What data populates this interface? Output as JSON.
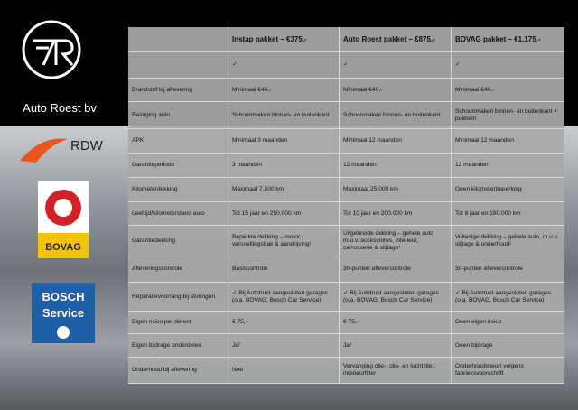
{
  "header": {
    "brand": "Auto Roest bv"
  },
  "logos": {
    "rdw": "RDW",
    "bovag": "BOVAG",
    "bosch": "BOSCH",
    "service": "Service"
  },
  "table": {
    "columns": [
      "Instap pakket – €375,-",
      "Auto Roest pakket – €875,-",
      "BOVAG pakket – €1.175,-"
    ],
    "check_row": [
      "✓",
      "✓",
      "✓"
    ],
    "rows": [
      {
        "label": "Brandstof bij aflevering",
        "cells": [
          "Minimaal €40,-",
          "Minimaal €40,-",
          "Minimaal €40,-"
        ]
      },
      {
        "label": "Reiniging auto",
        "cells": [
          "Schoonmaken binnen- en buitenkant",
          "Schoonmaken binnen- en buitenkant",
          "Schoonmaken binnen- en buitenkant + poetsen"
        ]
      },
      {
        "label": "APK",
        "cells": [
          "Minimaal 3 maanden",
          "Minimaal 12 maanden",
          "Minimaal 12 maanden"
        ]
      },
      {
        "label": "Garantieperiode",
        "cells": [
          "3 maanden",
          "12 maanden",
          "12 maanden"
        ]
      },
      {
        "label": "Kilometerdekking",
        "cells": [
          "Maximaal 7.500 km",
          "Maximaal 25.000 km",
          "Geen kilometerbeperking"
        ]
      },
      {
        "label": "Leeftijd/kilometerstand auto",
        "cells": [
          "Tot 15 jaar en 250.000 km",
          "Tot 10 jaar en 200.000 km",
          "Tot 8 jaar en 180.000 km"
        ]
      },
      {
        "label": "Garantiedekking",
        "cells": [
          "Beperkte dekking – motor, versnellingsbak & aandrijving¹",
          "Uitgebreide dekking – gehele auto m.u.v. accessoires, interieur, carrosserie & slijtage¹",
          "Volledige dekking – gehele auto, m.u.v. slijtage & onderhoud¹"
        ]
      },
      {
        "label": "Afleveringscontrole",
        "cells": [
          "Basiscontrole",
          "30-punten aflevercontrole",
          "30-punten aflevercontrole"
        ]
      },
      {
        "label": "Reparatievoorrang bij storingen",
        "cells": [
          "✓ Bij Autotrust aangesloten garages (o.a. BOVAG, Bosch Car Service)",
          "✓ Bij Autotrust aangesloten garages (o.a. BOVAG, Bosch Car Service)",
          "✓ Bij Autotrust aangesloten garages (o.a. BOVAG, Bosch Car Service)"
        ]
      },
      {
        "label": "Eigen risico per defect",
        "cells": [
          "€ 75,-",
          "€ 75,-",
          "Geen eigen risico"
        ]
      },
      {
        "label": "Eigen bijdrage onderdelen",
        "cells": [
          "Ja²",
          "Ja²",
          "Geen bijdrage"
        ]
      },
      {
        "label": "Onderhoud bij aflevering",
        "cells": [
          "Nee",
          "Vervanging olie-, olie- en luchtfilter, interieurfilter",
          "Onderhoudsbeurt volgens fabrieksvoorschrift"
        ]
      }
    ]
  }
}
